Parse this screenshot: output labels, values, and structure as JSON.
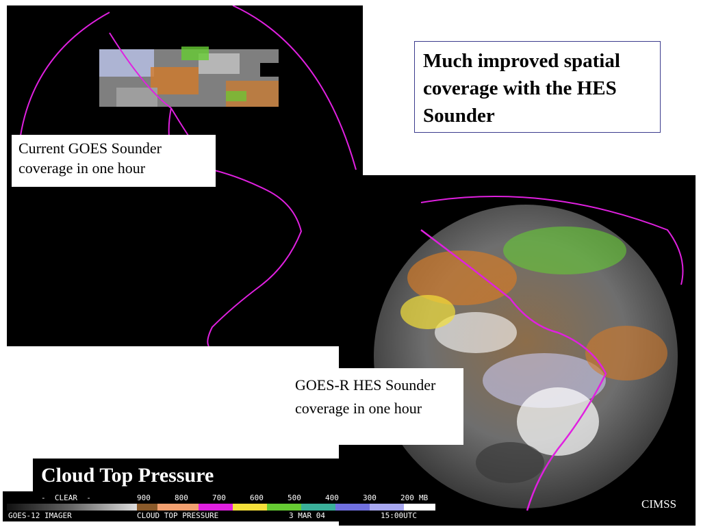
{
  "headline": "Much improved spatial coverage with the HES Sounder",
  "current_caption": "Current GOES Sounder coverage in one hour",
  "goesr_caption": "GOES-R HES Sounder coverage in one hour",
  "product_title": "Cloud Top Pressure",
  "credit": "CIMSS",
  "legend": {
    "clear_label": "-  CLEAR  -",
    "units": "MB",
    "pressure_ticks": [
      "900",
      "800",
      "700",
      "600",
      "500",
      "400",
      "300",
      "200"
    ]
  },
  "status_bar": {
    "instrument": "GOES-12 IMAGER",
    "product": "CLOUD TOP PRESSURE",
    "date": "3 MAR 04",
    "time": "15:00UTC"
  },
  "colors": {
    "coastline": "#e020e0",
    "frame_border": "#3a3a8c"
  }
}
